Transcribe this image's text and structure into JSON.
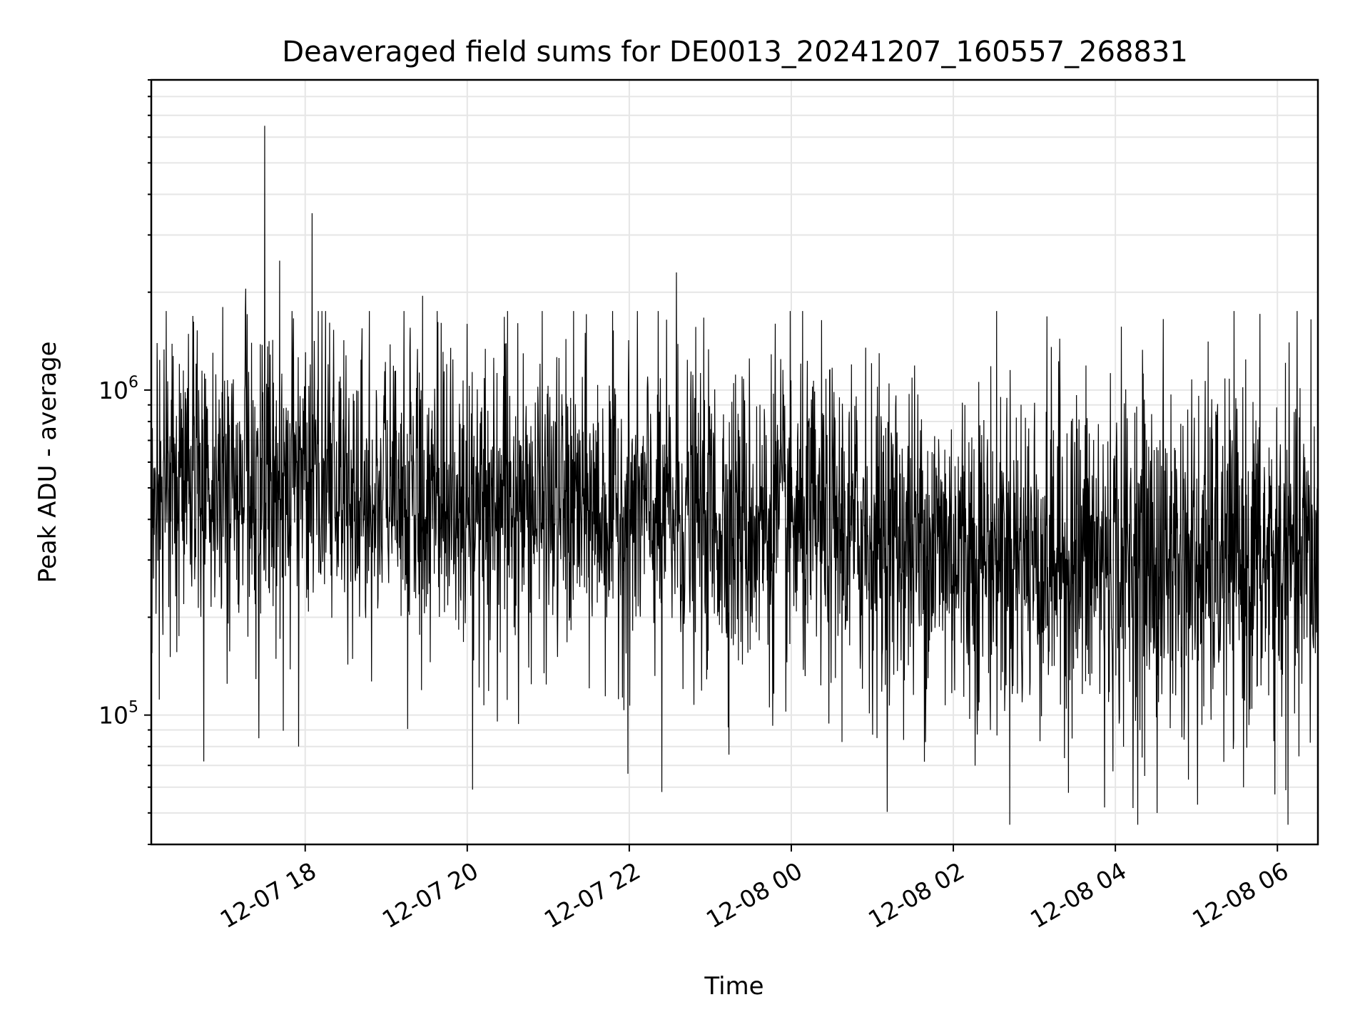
{
  "chart_data": {
    "type": "line",
    "title": "Deaveraged field sums for DE0013_20241207_160557_268831",
    "xlabel": "Time",
    "ylabel": "Peak ADU - average",
    "xlim": [
      "2024-12-07 16:06",
      "2024-12-08 06:30"
    ],
    "ylim": [
      40000,
      9000000
    ],
    "yscale": "log",
    "grid": true,
    "x_ticks": [
      {
        "label": "12-07 18",
        "t": "2024-12-07 18:00"
      },
      {
        "label": "12-07 20",
        "t": "2024-12-07 20:00"
      },
      {
        "label": "12-07 22",
        "t": "2024-12-07 22:00"
      },
      {
        "label": "12-08 00",
        "t": "2024-12-08 00:00"
      },
      {
        "label": "12-08 02",
        "t": "2024-12-08 02:00"
      },
      {
        "label": "12-08 04",
        "t": "2024-12-08 04:00"
      },
      {
        "label": "12-08 06",
        "t": "2024-12-08 06:00"
      }
    ],
    "y_ticks": [
      {
        "base": "10",
        "exp": "5",
        "value": 100000
      },
      {
        "base": "10",
        "exp": "6",
        "value": 1000000
      }
    ],
    "series_color": "#000000",
    "trend": [
      {
        "t": "2024-12-07 16:06",
        "median": 520000,
        "spread": 0.55
      },
      {
        "t": "2024-12-07 18:00",
        "median": 500000,
        "spread": 0.55
      },
      {
        "t": "2024-12-07 20:00",
        "median": 460000,
        "spread": 0.55
      },
      {
        "t": "2024-12-07 22:00",
        "median": 420000,
        "spread": 0.55
      },
      {
        "t": "2024-12-08 00:00",
        "median": 380000,
        "spread": 0.58
      },
      {
        "t": "2024-12-08 02:00",
        "median": 330000,
        "spread": 0.62
      },
      {
        "t": "2024-12-08 04:00",
        "median": 300000,
        "spread": 0.65
      },
      {
        "t": "2024-12-08 06:30",
        "median": 290000,
        "spread": 0.65
      }
    ],
    "peaks": [
      {
        "t": "2024-12-07 17:30",
        "y": 6500000
      },
      {
        "t": "2024-12-07 17:41",
        "y": 2500000
      },
      {
        "t": "2024-12-07 18:05",
        "y": 3500000
      },
      {
        "t": "2024-12-07 17:16",
        "y": 2050000
      },
      {
        "t": "2024-12-07 16:59",
        "y": 1800000
      },
      {
        "t": "2024-12-07 19:27",
        "y": 1950000
      },
      {
        "t": "2024-12-07 20:30",
        "y": 1750000
      },
      {
        "t": "2024-12-07 22:35",
        "y": 2300000
      },
      {
        "t": "2024-12-07 23:48",
        "y": 1600000
      },
      {
        "t": "2024-12-08 00:55",
        "y": 1350000
      },
      {
        "t": "2024-12-08 04:20",
        "y": 1330000
      },
      {
        "t": "2024-12-08 06:25",
        "y": 1650000
      }
    ],
    "troughs": [
      {
        "t": "2024-12-07 16:45",
        "y": 72000
      },
      {
        "t": "2024-12-07 17:55",
        "y": 80000
      },
      {
        "t": "2024-12-07 20:04",
        "y": 59000
      },
      {
        "t": "2024-12-07 21:59",
        "y": 66000
      },
      {
        "t": "2024-12-07 22:24",
        "y": 58000
      },
      {
        "t": "2024-12-08 03:52",
        "y": 52000
      },
      {
        "t": "2024-12-08 04:31",
        "y": 50000
      },
      {
        "t": "2024-12-08 05:01",
        "y": 53000
      },
      {
        "t": "2024-12-08 05:58",
        "y": 57000
      }
    ]
  }
}
